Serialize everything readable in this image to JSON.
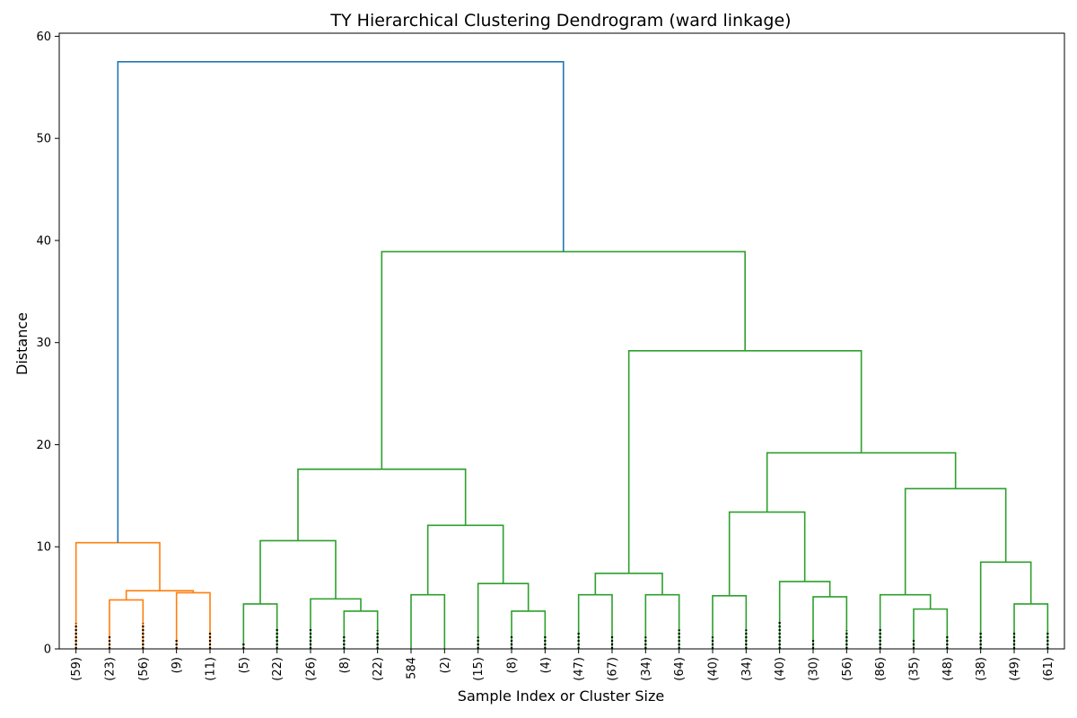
{
  "chart_data": {
    "type": "dendrogram",
    "title": "TY Hierarchical Clustering Dendrogram (ward linkage)",
    "xlabel": "Sample Index or Cluster Size",
    "ylabel": "Distance",
    "ylim": [
      0,
      60.3
    ],
    "yticks": [
      0,
      10,
      20,
      30,
      40,
      50,
      60
    ],
    "grid": false,
    "colors": {
      "cluster_a": "#ff7f0e",
      "cluster_b": "#2ca02c",
      "root": "#1f77b4",
      "truncation_dots": "#000000"
    },
    "leaves": [
      "(59)",
      "(23)",
      "(56)",
      "(9)",
      "(11)",
      "(5)",
      "(22)",
      "(26)",
      "(8)",
      "(22)",
      "584",
      "(2)",
      "(15)",
      "(8)",
      "(4)",
      "(47)",
      "(67)",
      "(34)",
      "(64)",
      "(40)",
      "(34)",
      "(40)",
      "(30)",
      "(56)",
      "(86)",
      "(35)",
      "(48)",
      "(38)",
      "(49)",
      "(61)"
    ],
    "truncation_dot_heights": [
      2.5,
      1.3,
      2.5,
      1.0,
      1.7,
      0.7,
      2.0,
      2.0,
      1.4,
      1.8,
      0,
      0,
      1.2,
      1.4,
      1.3,
      1.6,
      1.4,
      1.2,
      1.9,
      1.2,
      1.9,
      2.8,
      1.0,
      1.8,
      2.0,
      1.0,
      1.4,
      1.6,
      1.7,
      1.6
    ],
    "merges": [
      {
        "id": "a1",
        "left": 1,
        "right": 2,
        "height": 4.8,
        "color": "cluster_a"
      },
      {
        "id": "a2",
        "left": 3,
        "right": 4,
        "height": 5.5,
        "color": "cluster_a"
      },
      {
        "id": "a3",
        "left": "a1",
        "right": "a2",
        "height": 5.7,
        "color": "cluster_a"
      },
      {
        "id": "a4",
        "left": 0,
        "right": "a3",
        "height": 10.4,
        "color": "cluster_a"
      },
      {
        "id": "b1",
        "left": 5,
        "right": 6,
        "height": 4.4,
        "color": "cluster_b"
      },
      {
        "id": "b2",
        "left": 8,
        "right": 9,
        "height": 3.7,
        "color": "cluster_b"
      },
      {
        "id": "b3",
        "left": 7,
        "right": "b2",
        "height": 4.9,
        "color": "cluster_b"
      },
      {
        "id": "b4",
        "left": "b1",
        "right": "b3",
        "height": 10.6,
        "color": "cluster_b"
      },
      {
        "id": "b5",
        "left": 10,
        "right": 11,
        "height": 5.3,
        "color": "cluster_b"
      },
      {
        "id": "b6",
        "left": 13,
        "right": 14,
        "height": 3.7,
        "color": "cluster_b"
      },
      {
        "id": "b7",
        "left": 12,
        "right": "b6",
        "height": 6.4,
        "color": "cluster_b"
      },
      {
        "id": "b8",
        "left": "b5",
        "right": "b7",
        "height": 12.1,
        "color": "cluster_b"
      },
      {
        "id": "b9",
        "left": "b4",
        "right": "b8",
        "height": 17.6,
        "color": "cluster_b"
      },
      {
        "id": "c1",
        "left": 15,
        "right": 16,
        "height": 5.3,
        "color": "cluster_b"
      },
      {
        "id": "c2",
        "left": 17,
        "right": 18,
        "height": 5.3,
        "color": "cluster_b"
      },
      {
        "id": "c3",
        "left": "c1",
        "right": "c2",
        "height": 7.4,
        "color": "cluster_b"
      },
      {
        "id": "c4",
        "left": 19,
        "right": 20,
        "height": 5.2,
        "color": "cluster_b"
      },
      {
        "id": "c5",
        "left": 22,
        "right": 23,
        "height": 5.1,
        "color": "cluster_b"
      },
      {
        "id": "c6",
        "left": 21,
        "right": "c5",
        "height": 6.6,
        "color": "cluster_b"
      },
      {
        "id": "c7",
        "left": "c4",
        "right": "c6",
        "height": 13.4,
        "color": "cluster_b"
      },
      {
        "id": "c8",
        "left": 25,
        "right": 26,
        "height": 3.9,
        "color": "cluster_b"
      },
      {
        "id": "c9",
        "left": 24,
        "right": "c8",
        "height": 5.3,
        "color": "cluster_b"
      },
      {
        "id": "c10",
        "left": 28,
        "right": 29,
        "height": 4.4,
        "color": "cluster_b"
      },
      {
        "id": "c11",
        "left": 27,
        "right": "c10",
        "height": 8.5,
        "color": "cluster_b"
      },
      {
        "id": "c12",
        "left": "c9",
        "right": "c11",
        "height": 15.7,
        "color": "cluster_b"
      },
      {
        "id": "c13",
        "left": "c7",
        "right": "c12",
        "height": 19.2,
        "color": "cluster_b"
      },
      {
        "id": "c14",
        "left": "c3",
        "right": "c13",
        "height": 29.2,
        "color": "cluster_b"
      },
      {
        "id": "c15",
        "left": "b9",
        "right": "c14",
        "height": 38.9,
        "color": "cluster_b"
      },
      {
        "id": "root",
        "left": "a4",
        "right": "c15",
        "height": 57.5,
        "color": "root"
      }
    ]
  }
}
